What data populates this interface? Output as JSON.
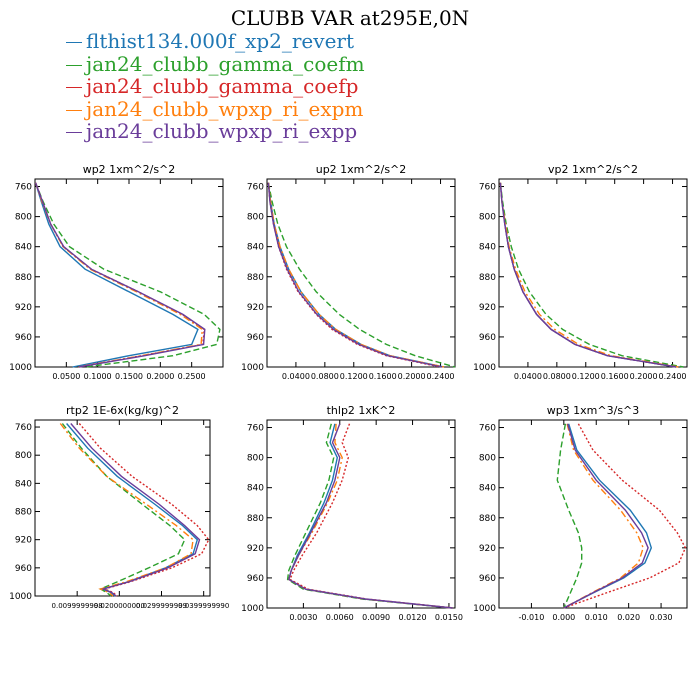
{
  "title": "CLUBB VAR at295E,0N",
  "colors": {
    "blue": "#1f77b4",
    "green": "#2ca02c",
    "red": "#d62728",
    "orange": "#ff7f0e",
    "purple": "#6a3d9a"
  },
  "legend": [
    {
      "name": "flthist134.000f_xp2_revert",
      "color": "#1f77b4"
    },
    {
      "name": "jan24_clubb_gamma_coefm",
      "color": "#2ca02c"
    },
    {
      "name": "jan24_clubb_gamma_coefp",
      "color": "#d62728"
    },
    {
      "name": "jan24_clubb_wpxp_ri_expm",
      "color": "#ff7f0e"
    },
    {
      "name": "jan24_clubb_wpxp_ri_expp",
      "color": "#6a3d9a"
    }
  ],
  "chart_data": [
    {
      "type": "line",
      "title": "wp2 1xm^2/s^2",
      "xlim": [
        0,
        0.3
      ],
      "ylim": [
        1000,
        750
      ],
      "xticks": [
        0.05,
        0.1,
        0.15,
        0.2,
        0.25
      ],
      "xticklabels": [
        "0.0500",
        "0.1000",
        "0.1500",
        "0.2000",
        "0.2500"
      ],
      "yticks": [
        760,
        800,
        840,
        880,
        920,
        960,
        1000
      ],
      "yticklabels": [
        "760",
        "800",
        "840",
        "880",
        "920",
        "960",
        "1000"
      ],
      "y": [
        755,
        780,
        810,
        840,
        870,
        900,
        930,
        950,
        970,
        985,
        1000
      ],
      "series": [
        {
          "name": "flthist134.000f_xp2_revert",
          "color": "#1f77b4",
          "style": "solid",
          "values": [
            0.001,
            0.01,
            0.022,
            0.04,
            0.08,
            0.15,
            0.22,
            0.26,
            0.25,
            0.15,
            0.06
          ]
        },
        {
          "name": "jan24_clubb_gamma_coefm",
          "color": "#2ca02c",
          "style": "dash",
          "values": [
            0.001,
            0.013,
            0.03,
            0.055,
            0.11,
            0.2,
            0.27,
            0.295,
            0.29,
            0.22,
            0.08
          ]
        },
        {
          "name": "jan24_clubb_gamma_coefp",
          "color": "#d62728",
          "style": "dot",
          "values": [
            0.001,
            0.012,
            0.025,
            0.045,
            0.09,
            0.165,
            0.235,
            0.27,
            0.268,
            0.17,
            0.07
          ]
        },
        {
          "name": "jan24_clubb_wpxp_ri_expm",
          "color": "#ff7f0e",
          "style": "dashdot",
          "values": [
            0.001,
            0.011,
            0.025,
            0.045,
            0.088,
            0.162,
            0.232,
            0.267,
            0.265,
            0.17,
            0.068
          ]
        },
        {
          "name": "jan24_clubb_wpxp_ri_expp",
          "color": "#6a3d9a",
          "style": "solid",
          "values": [
            0.001,
            0.012,
            0.025,
            0.046,
            0.09,
            0.165,
            0.236,
            0.271,
            0.269,
            0.175,
            0.07
          ]
        }
      ]
    },
    {
      "type": "line",
      "title": "up2 1xm^2/s^2",
      "xlim": [
        0,
        0.26
      ],
      "ylim": [
        1000,
        750
      ],
      "xticks": [
        0.04,
        0.08,
        0.12,
        0.16,
        0.2,
        0.24
      ],
      "xticklabels": [
        "0.0400",
        "0.0800",
        "0.1200",
        "0.1600",
        "0.2000",
        "0.2400"
      ],
      "yticks": [
        760,
        800,
        840,
        880,
        920,
        960,
        1000
      ],
      "yticklabels": [
        "760",
        "800",
        "840",
        "880",
        "920",
        "960",
        "1000"
      ],
      "y": [
        755,
        780,
        810,
        840,
        870,
        900,
        930,
        950,
        970,
        985,
        1000
      ],
      "series": [
        {
          "name": "flthist134.000f_xp2_revert",
          "color": "#1f77b4",
          "style": "solid",
          "values": [
            0.002,
            0.005,
            0.01,
            0.018,
            0.03,
            0.047,
            0.072,
            0.095,
            0.13,
            0.17,
            0.245
          ]
        },
        {
          "name": "jan24_clubb_gamma_coefm",
          "color": "#2ca02c",
          "style": "dash",
          "values": [
            0.002,
            0.007,
            0.015,
            0.027,
            0.045,
            0.068,
            0.1,
            0.128,
            0.165,
            0.205,
            0.26
          ]
        },
        {
          "name": "jan24_clubb_gamma_coefp",
          "color": "#d62728",
          "style": "dot",
          "values": [
            0.002,
            0.004,
            0.009,
            0.016,
            0.027,
            0.043,
            0.068,
            0.09,
            0.125,
            0.165,
            0.24
          ]
        },
        {
          "name": "jan24_clubb_wpxp_ri_expm",
          "color": "#ff7f0e",
          "style": "dashdot",
          "values": [
            0.002,
            0.005,
            0.01,
            0.018,
            0.03,
            0.047,
            0.072,
            0.095,
            0.13,
            0.17,
            0.245
          ]
        },
        {
          "name": "jan24_clubb_wpxp_ri_expp",
          "color": "#6a3d9a",
          "style": "solid",
          "values": [
            0.002,
            0.004,
            0.009,
            0.016,
            0.028,
            0.044,
            0.069,
            0.092,
            0.127,
            0.167,
            0.242
          ]
        }
      ]
    },
    {
      "type": "line",
      "title": "vp2 1xm^2/s^2",
      "xlim": [
        0,
        0.26
      ],
      "ylim": [
        1000,
        750
      ],
      "xticks": [
        0.04,
        0.08,
        0.12,
        0.16,
        0.2,
        0.24
      ],
      "xticklabels": [
        "0.0400",
        "0.0800",
        "0.1200",
        "0.1600",
        "0.2000",
        "0.2400"
      ],
      "yticks": [
        760,
        800,
        840,
        880,
        920,
        960,
        1000
      ],
      "yticklabels": [
        "760",
        "800",
        "840",
        "880",
        "920",
        "960",
        "1000"
      ],
      "y": [
        755,
        780,
        810,
        840,
        870,
        900,
        930,
        950,
        970,
        985,
        1000
      ],
      "series": [
        {
          "name": "flthist134.000f_xp2_revert",
          "color": "#1f77b4",
          "style": "solid",
          "values": [
            0.002,
            0.004,
            0.008,
            0.013,
            0.021,
            0.033,
            0.052,
            0.072,
            0.105,
            0.15,
            0.245
          ]
        },
        {
          "name": "jan24_clubb_gamma_coefm",
          "color": "#2ca02c",
          "style": "dash",
          "values": [
            0.002,
            0.005,
            0.01,
            0.017,
            0.027,
            0.042,
            0.065,
            0.088,
            0.125,
            0.17,
            0.255
          ]
        },
        {
          "name": "jan24_clubb_gamma_coefp",
          "color": "#d62728",
          "style": "dot",
          "values": [
            0.002,
            0.004,
            0.008,
            0.013,
            0.021,
            0.033,
            0.052,
            0.072,
            0.105,
            0.15,
            0.245
          ]
        },
        {
          "name": "jan24_clubb_wpxp_ri_expm",
          "color": "#ff7f0e",
          "style": "dashdot",
          "values": [
            0.002,
            0.004,
            0.009,
            0.014,
            0.023,
            0.036,
            0.056,
            0.077,
            0.11,
            0.155,
            0.248
          ]
        },
        {
          "name": "jan24_clubb_wpxp_ri_expp",
          "color": "#6a3d9a",
          "style": "solid",
          "values": [
            0.002,
            0.004,
            0.008,
            0.013,
            0.021,
            0.033,
            0.052,
            0.072,
            0.105,
            0.15,
            0.245
          ]
        }
      ]
    },
    {
      "type": "line",
      "title": "rtp2 1E-6x(kg/kg)^2",
      "xlim": [
        0.0,
        0.0415
      ],
      "ylim": [
        1000,
        750
      ],
      "xticks": [
        0.01,
        0.02,
        0.03,
        0.04
      ],
      "xticklabels": [
        "0.0099999998",
        "0.0200000000",
        "0.0299999999",
        "0.0399999990"
      ],
      "yticks": [
        760,
        800,
        840,
        880,
        920,
        960,
        1000
      ],
      "yticklabels": [
        "760",
        "800",
        "840",
        "880",
        "920",
        "960",
        "1000"
      ],
      "y": [
        755,
        790,
        830,
        870,
        900,
        920,
        940,
        960,
        980,
        990,
        995,
        1000
      ],
      "series": [
        {
          "name": "flthist134.000f_xp2_revert",
          "color": "#1f77b4",
          "style": "solid",
          "values": [
            0.0075,
            0.0125,
            0.0195,
            0.0285,
            0.035,
            0.0385,
            0.0375,
            0.031,
            0.022,
            0.016,
            0.018,
            0.019
          ]
        },
        {
          "name": "jan24_clubb_gamma_coefm",
          "color": "#2ca02c",
          "style": "dash",
          "values": [
            0.0065,
            0.011,
            0.017,
            0.0255,
            0.032,
            0.0355,
            0.034,
            0.027,
            0.0195,
            0.0155,
            0.017,
            0.018
          ]
        },
        {
          "name": "jan24_clubb_gamma_coefp",
          "color": "#d62728",
          "style": "dot",
          "values": [
            0.0105,
            0.0155,
            0.023,
            0.0325,
            0.0385,
            0.0412,
            0.0395,
            0.0325,
            0.0225,
            0.0165,
            0.0185,
            0.0195
          ]
        },
        {
          "name": "jan24_clubb_wpxp_ri_expm",
          "color": "#ff7f0e",
          "style": "dashdot",
          "values": [
            0.006,
            0.0105,
            0.017,
            0.0265,
            0.0335,
            0.0375,
            0.037,
            0.031,
            0.0215,
            0.0155,
            0.0175,
            0.0185
          ]
        },
        {
          "name": "jan24_clubb_wpxp_ri_expp",
          "color": "#6a3d9a",
          "style": "solid",
          "values": [
            0.0085,
            0.0135,
            0.0205,
            0.0295,
            0.0355,
            0.039,
            0.038,
            0.0315,
            0.0222,
            0.0162,
            0.0182,
            0.0192
          ]
        }
      ]
    },
    {
      "type": "line",
      "title": "thlp2 1xK^2",
      "xlim": [
        0.0,
        0.0155
      ],
      "ylim": [
        1000,
        750
      ],
      "xticks": [
        0.003,
        0.006,
        0.009,
        0.012,
        0.015
      ],
      "xticklabels": [
        "0.0030",
        "0.0060",
        "0.0090",
        "0.0120",
        "0.0150"
      ],
      "yticks": [
        760,
        800,
        840,
        880,
        920,
        960,
        1000
      ],
      "yticklabels": [
        "760",
        "800",
        "840",
        "880",
        "920",
        "960",
        "1000"
      ],
      "y": [
        755,
        780,
        800,
        830,
        860,
        900,
        930,
        950,
        962,
        975,
        988,
        1000
      ],
      "series": [
        {
          "name": "flthist134.000f_xp2_revert",
          "color": "#1f77b4",
          "style": "solid",
          "values": [
            0.0056,
            0.0052,
            0.0058,
            0.0054,
            0.0047,
            0.0035,
            0.0025,
            0.002,
            0.0018,
            0.0032,
            0.008,
            0.0153
          ]
        },
        {
          "name": "jan24_clubb_gamma_coefm",
          "color": "#2ca02c",
          "style": "dash",
          "values": [
            0.0053,
            0.0049,
            0.0055,
            0.0051,
            0.0044,
            0.0032,
            0.0023,
            0.0018,
            0.0017,
            0.003,
            0.0078,
            0.0152
          ]
        },
        {
          "name": "jan24_clubb_gamma_coefp",
          "color": "#d62728",
          "style": "dot",
          "values": [
            0.0068,
            0.0062,
            0.0067,
            0.0062,
            0.0054,
            0.0041,
            0.0029,
            0.0022,
            0.0019,
            0.0034,
            0.0082,
            0.0154
          ]
        },
        {
          "name": "jan24_clubb_wpxp_ri_expm",
          "color": "#ff7f0e",
          "style": "dashdot",
          "values": [
            0.0057,
            0.0056,
            0.0062,
            0.0058,
            0.005,
            0.0037,
            0.0026,
            0.002,
            0.0018,
            0.0032,
            0.008,
            0.0153
          ]
        },
        {
          "name": "jan24_clubb_wpxp_ri_expp",
          "color": "#6a3d9a",
          "style": "solid",
          "values": [
            0.006,
            0.0054,
            0.006,
            0.0056,
            0.0049,
            0.0036,
            0.0026,
            0.002,
            0.0018,
            0.0032,
            0.0081,
            0.0153
          ]
        }
      ]
    },
    {
      "type": "line",
      "title": "wp3 1xm^3/s^3",
      "xlim": [
        -0.02,
        0.038
      ],
      "ylim": [
        1000,
        750
      ],
      "xticks": [
        -0.01,
        0.0,
        0.01,
        0.02,
        0.03
      ],
      "xticklabels": [
        "-0.010",
        "0.000",
        "0.010",
        "0.020",
        "0.030"
      ],
      "yticks": [
        760,
        800,
        840,
        880,
        920,
        960,
        1000
      ],
      "yticklabels": [
        "760",
        "800",
        "840",
        "880",
        "920",
        "960",
        "1000"
      ],
      "y": [
        755,
        790,
        830,
        870,
        900,
        920,
        940,
        960,
        980,
        1000
      ],
      "series": [
        {
          "name": "flthist134.000f_xp2_revert",
          "color": "#1f77b4",
          "style": "solid",
          "values": [
            0.0015,
            0.004,
            0.011,
            0.0205,
            0.0255,
            0.027,
            0.025,
            0.0185,
            0.009,
            0.0
          ]
        },
        {
          "name": "jan24_clubb_gamma_coefm",
          "color": "#2ca02c",
          "style": "dash",
          "values": [
            0.0005,
            -0.001,
            -0.002,
            0.0015,
            0.0045,
            0.0055,
            0.0055,
            0.004,
            0.002,
            0.0
          ]
        },
        {
          "name": "jan24_clubb_gamma_coefp",
          "color": "#d62728",
          "style": "dot",
          "values": [
            0.0045,
            0.009,
            0.018,
            0.0295,
            0.035,
            0.0375,
            0.0355,
            0.0265,
            0.013,
            0.0
          ]
        },
        {
          "name": "jan24_clubb_wpxp_ri_expm",
          "color": "#ff7f0e",
          "style": "dashdot",
          "values": [
            0.001,
            0.003,
            0.009,
            0.0175,
            0.0225,
            0.0245,
            0.023,
            0.0175,
            0.0085,
            0.0
          ]
        },
        {
          "name": "jan24_clubb_wpxp_ri_expp",
          "color": "#6a3d9a",
          "style": "solid",
          "values": [
            0.0012,
            0.0035,
            0.01,
            0.019,
            0.024,
            0.026,
            0.0242,
            0.018,
            0.0088,
            0.0
          ]
        }
      ]
    }
  ]
}
